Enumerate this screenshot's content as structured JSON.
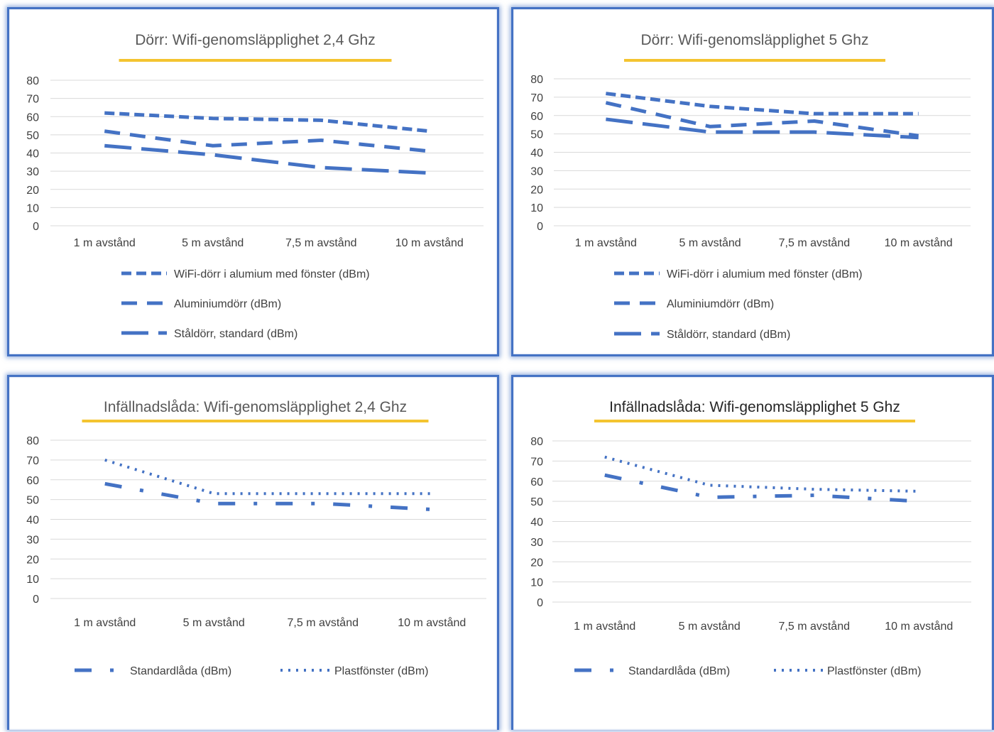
{
  "colors": {
    "series": "#4472c4",
    "gridline": "#d9d9d9",
    "title_underline": "#f4c430",
    "panel_border": "#4472c4"
  },
  "chart_data": [
    {
      "type": "line",
      "title": "Dörr: Wifi-genomsläpplighet 2,4 Ghz",
      "categories": [
        "1 m avstånd",
        "5 m avstånd",
        "7,5 m avstånd",
        "10 m avstånd"
      ],
      "ylim": [
        0,
        80
      ],
      "yticks": [
        0,
        10,
        20,
        30,
        40,
        50,
        60,
        70,
        80
      ],
      "grid": true,
      "legend_position": "bottom",
      "series": [
        {
          "name": "WiFi-dörr i alumium med fönster (dBm)",
          "values": [
            62,
            59,
            58,
            52
          ],
          "dash": "short-dash"
        },
        {
          "name": "Aluminiumdörr (dBm)",
          "values": [
            52,
            44,
            47,
            41
          ],
          "dash": "dash"
        },
        {
          "name": "Ståldörr, standard (dBm)",
          "values": [
            44,
            39,
            32,
            29
          ],
          "dash": "long-dash"
        }
      ]
    },
    {
      "type": "line",
      "title": "Dörr: Wifi-genomsläpplighet 5 Ghz",
      "categories": [
        "1 m avstånd",
        "5 m avstånd",
        "7,5 m avstånd",
        "10 m avstånd"
      ],
      "ylim": [
        0,
        80
      ],
      "yticks": [
        0,
        10,
        20,
        30,
        40,
        50,
        60,
        70,
        80
      ],
      "grid": true,
      "legend_position": "bottom",
      "series": [
        {
          "name": "WiFi-dörr i alumium med fönster (dBm)",
          "values": [
            72,
            65,
            61,
            61
          ],
          "dash": "short-dash"
        },
        {
          "name": "Aluminiumdörr (dBm)",
          "values": [
            67,
            54,
            57,
            49
          ],
          "dash": "dash"
        },
        {
          "name": "Ståldörr, standard (dBm)",
          "values": [
            58,
            51,
            51,
            48
          ],
          "dash": "long-dash"
        }
      ]
    },
    {
      "type": "line",
      "title": "Infällnadslåda: Wifi-genomsläpplighet 2,4 Ghz",
      "categories": [
        "1 m avstånd",
        "5 m avstånd",
        "7,5 m avstånd",
        "10 m avstånd"
      ],
      "ylim": [
        0,
        80
      ],
      "yticks": [
        0,
        10,
        20,
        30,
        40,
        50,
        60,
        70,
        80
      ],
      "grid": true,
      "legend_position": "bottom",
      "series": [
        {
          "name": "Standardlåda (dBm)",
          "values": [
            58,
            48,
            48,
            45
          ],
          "dash": "long-dash-dot"
        },
        {
          "name": "Plastfönster (dBm)",
          "values": [
            70,
            53,
            53,
            53
          ],
          "dash": "dot"
        }
      ]
    },
    {
      "type": "line",
      "title": "Infällnadslåda: Wifi-genomsläpplighet 5 Ghz",
      "categories": [
        "1 m avstånd",
        "5 m avstånd",
        "7,5 m avstånd",
        "10 m avstånd"
      ],
      "ylim": [
        0,
        80
      ],
      "yticks": [
        0,
        10,
        20,
        30,
        40,
        50,
        60,
        70,
        80
      ],
      "grid": true,
      "legend_position": "bottom",
      "series": [
        {
          "name": "Standardlåda (dBm)",
          "values": [
            63,
            52,
            53,
            50
          ],
          "dash": "long-dash-dot"
        },
        {
          "name": "Plastfönster (dBm)",
          "values": [
            72,
            58,
            56,
            55
          ],
          "dash": "dot"
        }
      ]
    }
  ]
}
